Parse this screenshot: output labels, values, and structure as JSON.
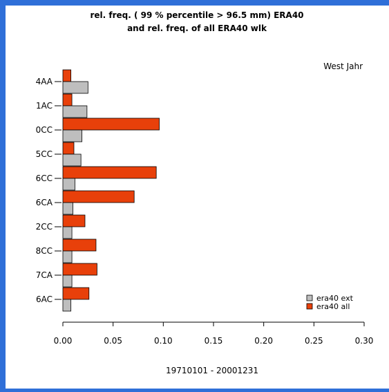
{
  "chart_data": {
    "type": "bar",
    "orientation": "horizontal",
    "title": "rel. freq. ( 99 % percentile > 96.5 mm) ERA40",
    "subtitle": "and rel. freq. of all ERA40 wlk",
    "annotation": "West Jahr",
    "xlabel": "19710101 - 20001231",
    "ylabel": "",
    "categories": [
      "4AA",
      "1AC",
      "0CC",
      "5CC",
      "6CC",
      "6CA",
      "2CC",
      "8CC",
      "7CA",
      "6AC"
    ],
    "series": [
      {
        "name": "era40 ext",
        "color": "#bebebe",
        "values": [
          0.025,
          0.024,
          0.019,
          0.018,
          0.012,
          0.01,
          0.009,
          0.009,
          0.009,
          0.008
        ]
      },
      {
        "name": "era40 all",
        "color": "#e8400a",
        "values": [
          0.008,
          0.009,
          0.096,
          0.011,
          0.093,
          0.071,
          0.022,
          0.033,
          0.034,
          0.026
        ]
      }
    ],
    "xlim": [
      0,
      0.3
    ],
    "xticks": [
      "0.00",
      "0.05",
      "0.10",
      "0.15",
      "0.20",
      "0.25",
      "0.30"
    ],
    "xtick_values": [
      0,
      0.05,
      0.1,
      0.15,
      0.2,
      0.25,
      0.3
    ],
    "grid": false,
    "legend_position": "bottom-right"
  }
}
